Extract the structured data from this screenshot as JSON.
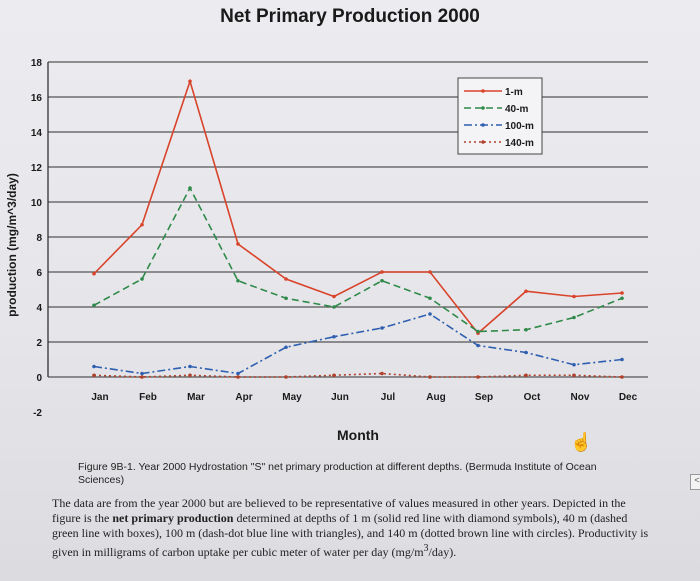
{
  "chart_data": {
    "type": "line",
    "title": "Net Primary Production 2000",
    "xlabel": "Month",
    "ylabel": "production (mg/m^3/day)",
    "categories": [
      "Jan",
      "Feb",
      "Mar",
      "Apr",
      "May",
      "Jun",
      "Jul",
      "Aug",
      "Sep",
      "Oct",
      "Nov",
      "Dec"
    ],
    "ylim": [
      -2,
      18
    ],
    "yticks": [
      -2,
      0,
      2,
      4,
      6,
      8,
      10,
      12,
      14,
      16,
      18
    ],
    "grid": true,
    "legend_position": "top-right",
    "series": [
      {
        "name": "1-m",
        "style": "solid",
        "color": "#d9432a",
        "values": [
          5.9,
          8.7,
          16.9,
          7.6,
          5.6,
          4.6,
          6.0,
          6.0,
          2.5,
          4.9,
          4.6,
          4.8
        ]
      },
      {
        "name": "40-m",
        "style": "dashed",
        "color": "#2f8a4a",
        "values": [
          4.1,
          5.6,
          10.8,
          5.5,
          4.5,
          4.0,
          5.5,
          4.5,
          2.6,
          2.7,
          3.4,
          4.5
        ]
      },
      {
        "name": "100-m",
        "style": "dashdot",
        "color": "#2f5fb0",
        "values": [
          0.6,
          0.2,
          0.6,
          0.2,
          1.7,
          2.3,
          2.8,
          3.6,
          1.8,
          1.4,
          0.7,
          1.0
        ]
      },
      {
        "name": "140-m",
        "style": "dotted",
        "color": "#b0402a",
        "values": [
          0.1,
          0.0,
          0.1,
          0.0,
          0.0,
          0.1,
          0.2,
          0.0,
          0.0,
          0.1,
          0.1,
          0.0
        ]
      }
    ]
  },
  "caption": "Figure 9B-1. Year 2000 Hydrostation \"S\" net primary production at different depths. (Bermuda Institute of Ocean Sciences)",
  "body": {
    "part1": "The data are from the year 2000 but are believed to be representative of values measured in other years. Depicted in the figure is the ",
    "bold": "net primary production",
    "part2": " determined at depths of 1 m (solid red line with diamond symbols), 40 m (dashed green line with boxes), 100 m (dash-dot blue line with triangles), and 140 m (dotted brown line with circles). Productivity is given in milligrams of carbon uptake per cubic meter of water per day (mg/m",
    "sup": "3",
    "part3": "/day)."
  }
}
